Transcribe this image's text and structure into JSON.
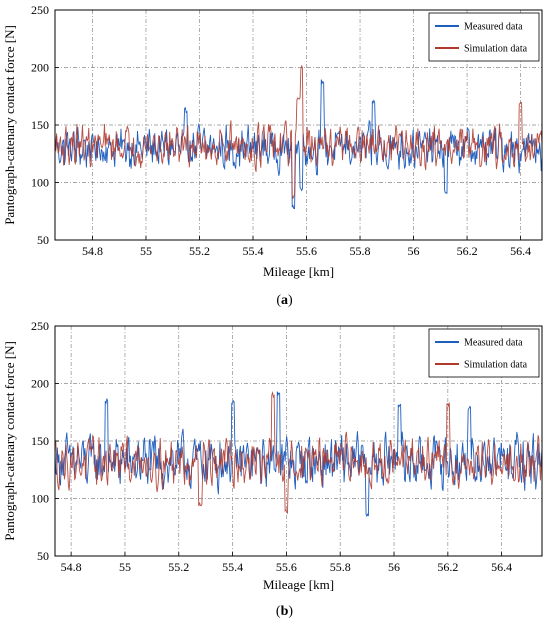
{
  "colors": {
    "measured": "#1f5fbf",
    "simulation": "#b03a2e",
    "grid": "#8c8c8c"
  },
  "chart_data": [
    {
      "type": "line",
      "caption_open": "(",
      "caption_letter": "a",
      "caption_close": ")",
      "xlabel": "Mileage [km]",
      "ylabel": "Pantograph-catenary contact force [N]",
      "xlim": [
        54.66,
        56.48
      ],
      "ylim": [
        50,
        250
      ],
      "xticks": [
        54.8,
        55,
        55.2,
        55.4,
        55.6,
        55.8,
        56,
        56.2,
        56.4
      ],
      "xtick_labels": [
        "54.8",
        "55",
        "55.2",
        "55.4",
        "55.6",
        "55.8",
        "56",
        "56.2",
        "56.4"
      ],
      "yticks": [
        50,
        100,
        150,
        200,
        250
      ],
      "ytick_labels": [
        "50",
        "100",
        "150",
        "200",
        "250"
      ],
      "grid": true,
      "legend_position": "top-right",
      "series": [
        {
          "name": "Measured data",
          "mean": 130,
          "amp": 14,
          "spikes": [
            [
              55.55,
              78
            ],
            [
              55.66,
              188
            ],
            [
              55.58,
              95
            ],
            [
              56.12,
              92
            ],
            [
              55.85,
              170
            ],
            [
              55.15,
              163
            ]
          ]
        },
        {
          "name": "Simulation data",
          "mean": 132,
          "amp": 13,
          "spikes": [
            [
              55.58,
              200
            ],
            [
              55.55,
              88
            ],
            [
              55.57,
              172
            ],
            [
              56.4,
              168
            ]
          ]
        }
      ]
    },
    {
      "type": "line",
      "caption_open": "(",
      "caption_letter": "b",
      "caption_close": ")",
      "xlabel": "Mileage [km]",
      "ylabel": "Pantograph-catenary contact force [N]",
      "xlim": [
        54.74,
        56.55
      ],
      "ylim": [
        50,
        250
      ],
      "xticks": [
        54.8,
        55,
        55.2,
        55.4,
        55.6,
        55.8,
        56,
        56.2,
        56.4
      ],
      "xtick_labels": [
        "54.8",
        "55",
        "55.2",
        "55.4",
        "55.6",
        "55.8",
        "56",
        "56.2",
        "56.4"
      ],
      "yticks": [
        50,
        100,
        150,
        200,
        250
      ],
      "ytick_labels": [
        "50",
        "100",
        "150",
        "200",
        "250"
      ],
      "grid": true,
      "legend_position": "top-right",
      "series": [
        {
          "name": "Measured data",
          "mean": 132,
          "amp": 18,
          "spikes": [
            [
              54.93,
              185
            ],
            [
              55.4,
              183
            ],
            [
              55.57,
              192
            ],
            [
              56.02,
              182
            ],
            [
              55.9,
              85
            ],
            [
              56.28,
              178
            ]
          ]
        },
        {
          "name": "Simulation data",
          "mean": 132,
          "amp": 15,
          "spikes": [
            [
              55.55,
              190
            ],
            [
              56.2,
              182
            ],
            [
              55.6,
              88
            ],
            [
              55.28,
              95
            ]
          ]
        }
      ]
    }
  ]
}
